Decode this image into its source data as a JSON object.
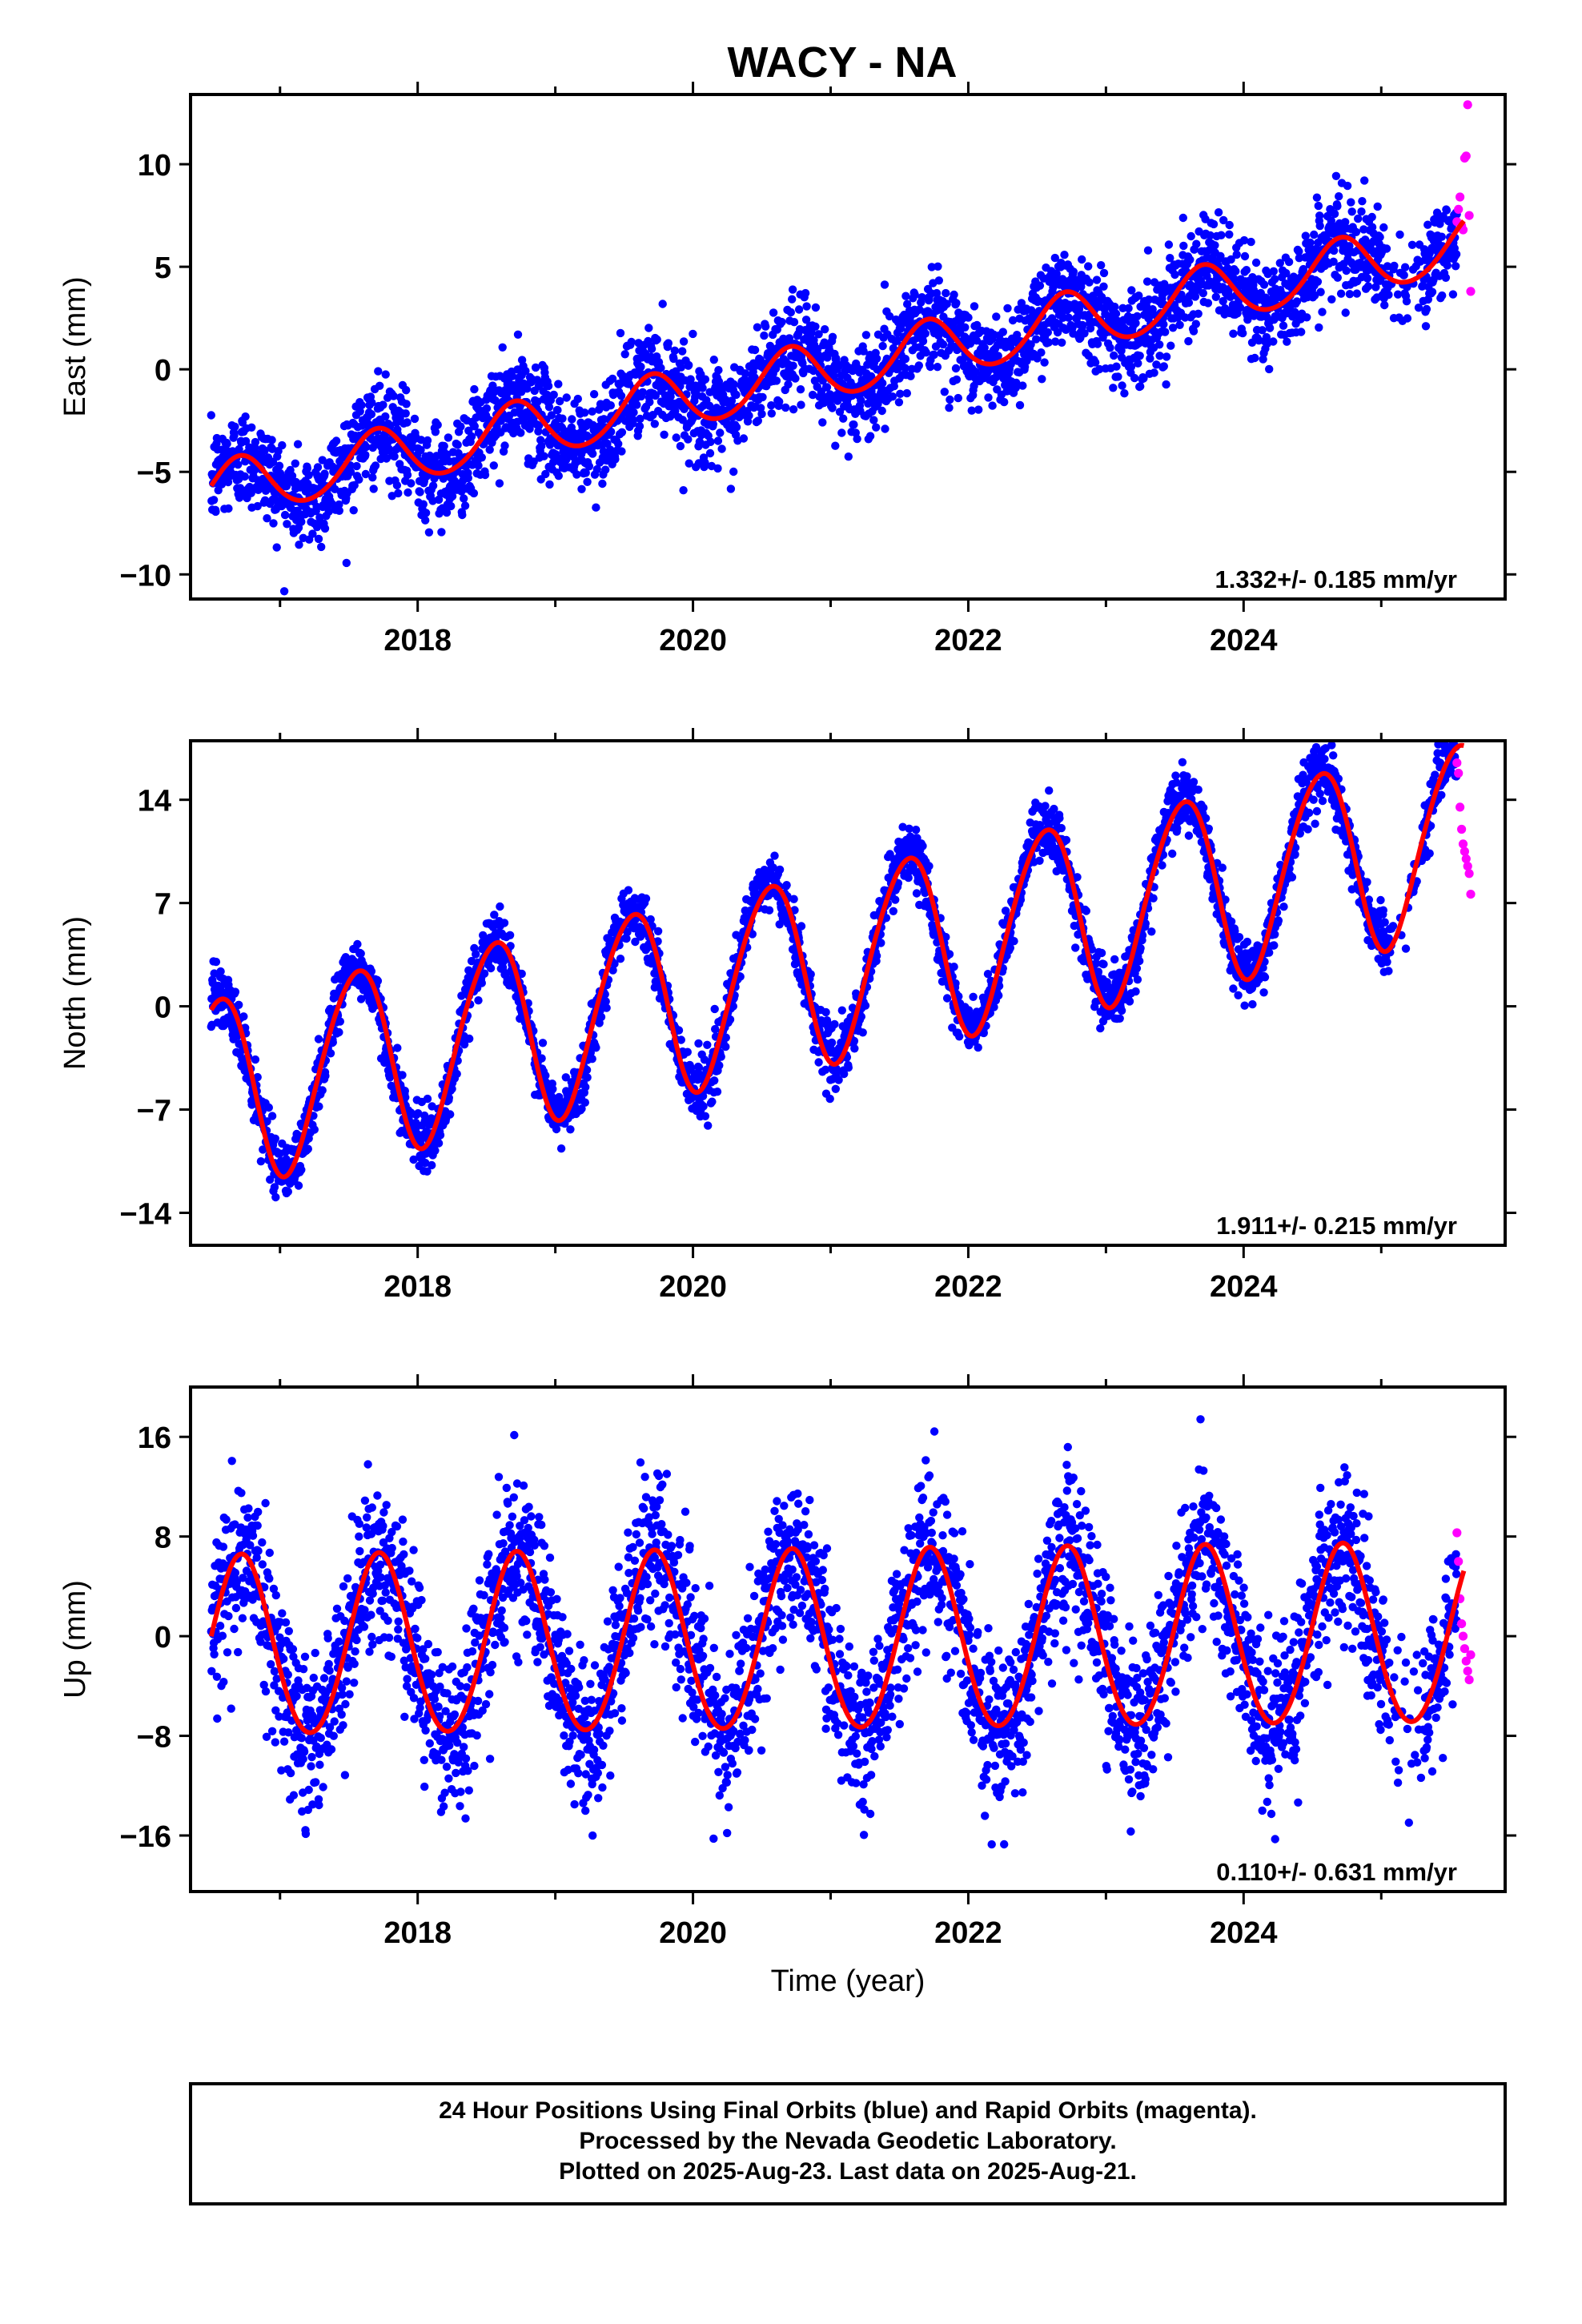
{
  "title": "WACY - NA",
  "chart_data": [
    {
      "type": "scatter",
      "ylabel": "East (mm)",
      "xlabel": "",
      "xlim": [
        2016.35,
        2025.9
      ],
      "ylim": [
        -11.2,
        13.4
      ],
      "xticks": [
        2018,
        2020,
        2022,
        2024
      ],
      "yticks": [
        -10,
        -5,
        0,
        5,
        10
      ],
      "ytick_labels": [
        "−10",
        "−5",
        "0",
        "5",
        "10"
      ],
      "rate": "1.332+/- 0.185 mm/yr",
      "series": [
        {
          "role": "final-orbits",
          "color": "#0000ff",
          "trend_start": -6.0,
          "trend_slope": 1.33,
          "amplitude": 1.4,
          "phase_peak": 0.7,
          "noise": 1.2
        },
        {
          "role": "rapid-orbits",
          "color": "#ff00ff",
          "x_range": [
            2025.55,
            2025.65
          ],
          "values": [
            7.2,
            7.8,
            8.4,
            7.0,
            6.8,
            10.3,
            10.4,
            12.9,
            7.5,
            3.8
          ]
        },
        {
          "role": "model-fit",
          "color": "#ff0000"
        }
      ]
    },
    {
      "type": "scatter",
      "ylabel": "North (mm)",
      "xlabel": "",
      "xlim": [
        2016.35,
        2025.9
      ],
      "ylim": [
        -16.2,
        18.0
      ],
      "xticks": [
        2018,
        2020,
        2022,
        2024
      ],
      "yticks": [
        -14,
        -7,
        0,
        7,
        14
      ],
      "ytick_labels": [
        "−14",
        "−7",
        "0",
        "7",
        "14"
      ],
      "rate": "1.911+/- 0.215 mm/yr",
      "series": [
        {
          "role": "final-orbits",
          "color": "#0000ff",
          "trend_start": -5.8,
          "trend_slope": 1.91,
          "amplitude": 6.4,
          "phase_peak": 0.55,
          "noise": 1.0
        },
        {
          "role": "rapid-orbits",
          "color": "#ff00ff",
          "x_range": [
            2025.55,
            2025.65
          ],
          "values": [
            16.5,
            15.8,
            13.5,
            12.0,
            11.0,
            10.5,
            10.0,
            9.5,
            9.0,
            7.6
          ]
        },
        {
          "role": "model-fit",
          "color": "#ff0000"
        }
      ]
    },
    {
      "type": "scatter",
      "ylabel": "Up (mm)",
      "xlabel": "Time (year)",
      "xlim": [
        2016.35,
        2025.9
      ],
      "ylim": [
        -20.5,
        20.0
      ],
      "xticks": [
        2018,
        2020,
        2022,
        2024
      ],
      "yticks": [
        -16,
        -8,
        0,
        8,
        16
      ],
      "ytick_labels": [
        "−16",
        "−8",
        "0",
        "8",
        "16"
      ],
      "rate": "0.110+/- 0.631 mm/yr",
      "series": [
        {
          "role": "final-orbits",
          "color": "#0000ff",
          "trend_start": -1.0,
          "trend_slope": 0.11,
          "amplitude": 7.2,
          "phase_peak": 0.72,
          "noise": 3.2
        },
        {
          "role": "rapid-orbits",
          "color": "#ff00ff",
          "x_range": [
            2025.55,
            2025.65
          ],
          "values": [
            8.3,
            6.0,
            3.0,
            1.0,
            0.0,
            -1.0,
            -2.0,
            -2.8,
            -3.5,
            -1.5
          ]
        },
        {
          "role": "model-fit",
          "color": "#ff0000"
        }
      ]
    }
  ],
  "footer": {
    "line1": "24 Hour Positions Using Final Orbits (blue) and Rapid Orbits (magenta).",
    "line2": "Processed by the Nevada Geodetic Laboratory.",
    "line3": "Plotted on 2025-Aug-23. Last data on 2025-Aug-21."
  }
}
